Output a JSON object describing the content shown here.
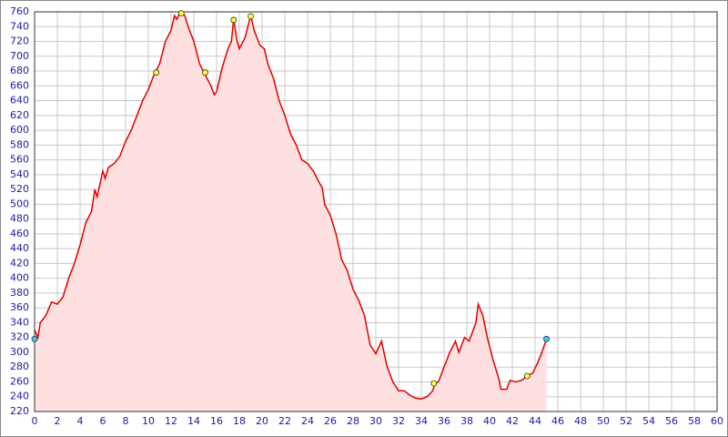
{
  "chart_data": {
    "type": "area",
    "x": [
      0,
      0.3,
      0.5,
      1,
      1.5,
      2,
      2.5,
      3,
      3.5,
      4,
      4.5,
      5,
      5.3,
      5.5,
      6,
      6.2,
      6.5,
      7,
      7.5,
      8,
      8.5,
      9,
      9.5,
      10,
      10.5,
      11,
      11.5,
      12,
      12.3,
      12.5,
      12.8,
      13.2,
      13.5,
      14,
      14.5,
      15,
      15.5,
      15.8,
      16,
      16.5,
      17,
      17.3,
      17.5,
      17.8,
      18,
      18.5,
      19,
      19.3,
      19.8,
      20.2,
      20.5,
      21,
      21.5,
      22,
      22.5,
      23,
      23.5,
      24,
      24.5,
      25,
      25.3,
      25.5,
      26,
      26.5,
      27,
      27.5,
      28,
      28.5,
      29,
      29.5,
      30,
      30.5,
      31,
      31.5,
      32,
      32.5,
      33,
      33.5,
      34,
      34.5,
      35,
      35.2,
      35.5,
      36,
      36.5,
      37,
      37.3,
      37.8,
      38.2,
      38.8,
      39,
      39.4,
      39.8,
      40.3,
      40.8,
      41,
      41.5,
      41.8,
      42.3,
      42.8,
      43.3,
      43.8,
      44.2,
      44.6,
      45
    ],
    "series": [
      {
        "color": "#e00000",
        "fill": "#ffe0e0",
        "values": [
          330,
          320,
          340,
          350,
          368,
          365,
          375,
          400,
          420,
          445,
          475,
          490,
          520,
          510,
          545,
          535,
          550,
          555,
          565,
          585,
          600,
          620,
          640,
          655,
          675,
          690,
          720,
          735,
          755,
          750,
          760,
          755,
          740,
          720,
          690,
          675,
          660,
          648,
          652,
          685,
          710,
          720,
          750,
          720,
          710,
          725,
          755,
          735,
          715,
          710,
          690,
          670,
          640,
          620,
          595,
          580,
          560,
          555,
          545,
          530,
          522,
          500,
          485,
          460,
          425,
          410,
          385,
          370,
          350,
          310,
          298,
          315,
          280,
          260,
          248,
          248,
          242,
          238,
          237,
          240,
          248,
          258,
          260,
          280,
          300,
          315,
          300,
          320,
          315,
          340,
          365,
          350,
          320,
          290,
          265,
          250,
          250,
          262,
          260,
          262,
          268,
          272,
          285,
          300,
          318
        ]
      }
    ],
    "markers": {
      "x": [
        0,
        10.7,
        12.9,
        15,
        17.5,
        19,
        35.1,
        43.3,
        45
      ],
      "y": [
        318,
        678,
        758,
        678,
        749,
        754,
        258,
        268,
        318
      ],
      "colors": [
        "#33ccff",
        "#ffff33",
        "#ffff33",
        "#ffff33",
        "#ffff33",
        "#ffff33",
        "#ffff33",
        "#ffff33",
        "#33ccff"
      ]
    },
    "xlim": [
      0,
      60
    ],
    "ylim": [
      220,
      760
    ],
    "xticks": [
      0,
      2,
      4,
      6,
      8,
      10,
      12,
      14,
      16,
      18,
      20,
      22,
      24,
      26,
      28,
      30,
      32,
      34,
      36,
      38,
      40,
      42,
      44,
      46,
      48,
      50,
      52,
      54,
      56,
      58,
      60
    ],
    "yticks": [
      220,
      240,
      260,
      280,
      300,
      320,
      340,
      360,
      380,
      400,
      420,
      440,
      460,
      480,
      500,
      520,
      540,
      560,
      580,
      600,
      620,
      640,
      660,
      680,
      700,
      720,
      740,
      760
    ],
    "grid": true
  }
}
